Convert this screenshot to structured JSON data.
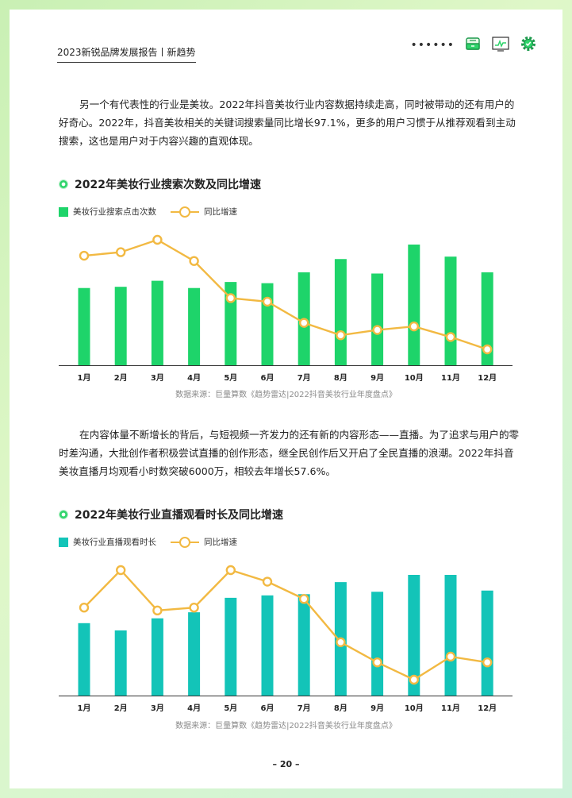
{
  "header": {
    "title": "2023新锐品牌发展报告丨新趋势",
    "dots": "••••••"
  },
  "icons": {
    "tray": "inbox-tray-icon",
    "monitor": "trend-monitor-icon",
    "settings": "gear-icon"
  },
  "colors": {
    "green": "#1ed46a",
    "teal": "#13c4b8",
    "orange": "#f2b942",
    "axis": "#333333"
  },
  "intro": "另一个有代表性的行业是美妆。2022年抖音美妆行业内容数据持续走高，同时被带动的还有用户的好奇心。2022年，抖音美妆相关的关键词搜索量同比增长97.1%，更多的用户习惯于从推荐观看到主动搜索，这也是用户对于内容兴趣的直观体现。",
  "section1": {
    "title": "2022年美妆行业搜索次数及同比增速",
    "source": "数据来源：巨量算数《趋势雷达|2022抖音美妆行业年度盘点》"
  },
  "para2": "在内容体量不断增长的背后，与短视频一齐发力的还有新的内容形态——直播。为了追求与用户的零时差沟通，大批创作者积极尝试直播的创作形态，继全民创作后又开启了全民直播的浪潮。2022年抖音美妆直播月均观看小时数突破6000万，相较去年增长57.6%。",
  "section2": {
    "title": "2022年美妆行业直播观看时长及同比增速",
    "source": "数据来源：巨量算数《趋势雷达|2022抖音美妆行业年度盘点》"
  },
  "chart_data": [
    {
      "type": "bar",
      "categories": [
        "1月",
        "2月",
        "3月",
        "4月",
        "5月",
        "6月",
        "7月",
        "8月",
        "9月",
        "10月",
        "11月",
        "12月"
      ],
      "series": [
        {
          "name": "美妆行业搜索点击次数",
          "kind": "bar",
          "values": [
            64,
            65,
            70,
            64,
            69,
            68,
            77,
            88,
            76,
            100,
            90,
            77
          ]
        },
        {
          "name": "同比增速",
          "kind": "line",
          "values": [
            87,
            89,
            96,
            84,
            63,
            61,
            49,
            42,
            45,
            47,
            41,
            34
          ]
        }
      ],
      "legend": "top-left",
      "grid": false
    },
    {
      "type": "bar",
      "categories": [
        "1月",
        "2月",
        "3月",
        "4月",
        "5月",
        "6月",
        "7月",
        "8月",
        "9月",
        "10月",
        "11月",
        "12月"
      ],
      "series": [
        {
          "name": "美妆行业直播观看时长",
          "kind": "bar",
          "values": [
            60,
            54,
            64,
            69,
            81,
            83,
            84,
            94,
            86,
            100,
            100,
            87
          ]
        },
        {
          "name": "同比增速",
          "kind": "line",
          "values": [
            75,
            88,
            74,
            75,
            88,
            84,
            78,
            63,
            56,
            50,
            58,
            56
          ]
        }
      ],
      "legend": "top-left",
      "grid": false
    }
  ],
  "page_number": "– 20 –"
}
